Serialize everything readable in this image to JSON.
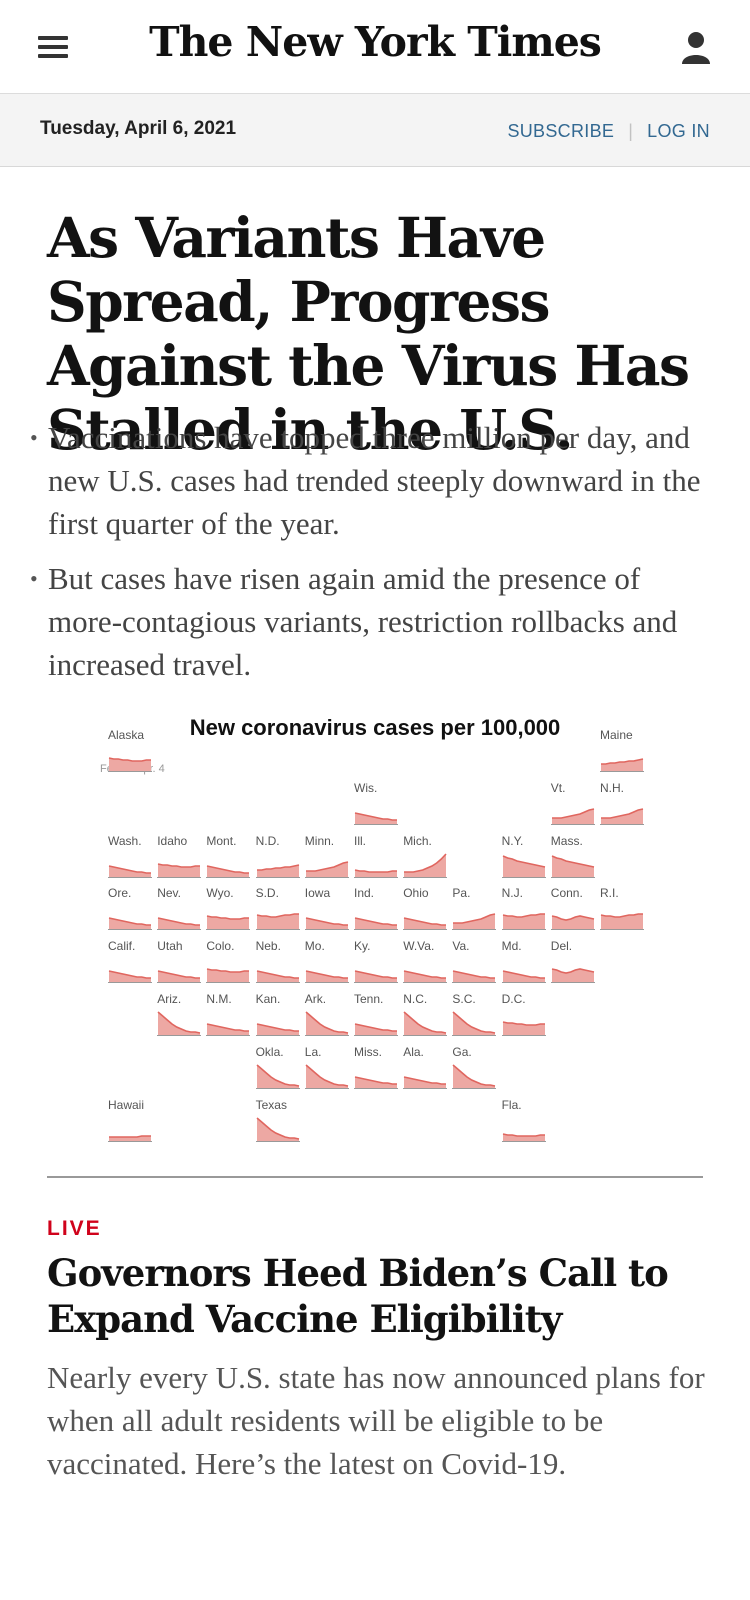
{
  "header": {
    "logo": "The New York Times",
    "date": "Tuesday, April 6, 2021",
    "subscribe": "SUBSCRIBE",
    "login": "LOG IN"
  },
  "story1": {
    "headline": "As Variants Have Spread, Progress Against the Virus Has Stalled in the U.S.",
    "bullets": [
      "Vaccinations have topped three million per day, and new U.S. cases had trended steeply downward in the first quarter of the year.",
      "But cases have risen again amid the presence of more-contagious variants, restriction rollbacks and increased travel."
    ]
  },
  "graphic": {
    "title": "New coronavirus cases per 100,000",
    "axis_start": "Feb. 1",
    "axis_end": "Apr. 4",
    "trend_color": "#e0665f",
    "fill_color": "#eda8a3",
    "states": [
      {
        "label": "Alaska",
        "trend": "flat-high"
      },
      {
        "label": "Maine",
        "trend": "rise-gentle"
      },
      {
        "label": "Wis.",
        "trend": "decline"
      },
      {
        "label": "Vt.",
        "trend": "rise"
      },
      {
        "label": "N.H.",
        "trend": "rise"
      },
      {
        "label": "Wash.",
        "trend": "decline"
      },
      {
        "label": "Idaho",
        "trend": "flat-high"
      },
      {
        "label": "Mont.",
        "trend": "decline"
      },
      {
        "label": "N.D.",
        "trend": "rise-gentle"
      },
      {
        "label": "Minn.",
        "trend": "rise"
      },
      {
        "label": "Ill.",
        "trend": "flat"
      },
      {
        "label": "Mich.",
        "trend": "spike"
      },
      {
        "label": "N.Y.",
        "trend": "high-decline"
      },
      {
        "label": "Mass.",
        "trend": "high-decline"
      },
      {
        "label": "Ore.",
        "trend": "decline"
      },
      {
        "label": "Nev.",
        "trend": "decline"
      },
      {
        "label": "Wyo.",
        "trend": "flat-high"
      },
      {
        "label": "S.D.",
        "trend": "high"
      },
      {
        "label": "Iowa",
        "trend": "decline"
      },
      {
        "label": "Ind.",
        "trend": "decline"
      },
      {
        "label": "Ohio",
        "trend": "decline"
      },
      {
        "label": "Pa.",
        "trend": "rise"
      },
      {
        "label": "N.J.",
        "trend": "high"
      },
      {
        "label": "Conn.",
        "trend": "wave"
      },
      {
        "label": "R.I.",
        "trend": "high"
      },
      {
        "label": "Calif.",
        "trend": "decline"
      },
      {
        "label": "Utah",
        "trend": "decline"
      },
      {
        "label": "Colo.",
        "trend": "flat-high"
      },
      {
        "label": "Neb.",
        "trend": "decline"
      },
      {
        "label": "Mo.",
        "trend": "decline"
      },
      {
        "label": "Ky.",
        "trend": "decline"
      },
      {
        "label": "W.Va.",
        "trend": "decline"
      },
      {
        "label": "Va.",
        "trend": "decline"
      },
      {
        "label": "Md.",
        "trend": "decline"
      },
      {
        "label": "Del.",
        "trend": "wave"
      },
      {
        "label": "Ariz.",
        "trend": "steep-decline"
      },
      {
        "label": "N.M.",
        "trend": "decline"
      },
      {
        "label": "Kan.",
        "trend": "decline"
      },
      {
        "label": "Ark.",
        "trend": "steep-decline"
      },
      {
        "label": "Tenn.",
        "trend": "decline"
      },
      {
        "label": "N.C.",
        "trend": "steep-decline"
      },
      {
        "label": "S.C.",
        "trend": "steep-decline"
      },
      {
        "label": "D.C.",
        "trend": "flat-high"
      },
      {
        "label": "Okla.",
        "trend": "steep-decline"
      },
      {
        "label": "La.",
        "trend": "steep-decline"
      },
      {
        "label": "Miss.",
        "trend": "decline"
      },
      {
        "label": "Ala.",
        "trend": "decline"
      },
      {
        "label": "Ga.",
        "trend": "steep-decline"
      },
      {
        "label": "Hawaii",
        "trend": "low-flat"
      },
      {
        "label": "Texas",
        "trend": "steep-decline"
      },
      {
        "label": "Fla.",
        "trend": "flat"
      }
    ]
  },
  "story2": {
    "tag": "LIVE",
    "headline": "Governors Heed Biden’s Call to Expand Vaccine Eligibility",
    "summary": "Nearly every U.S. state has now announced plans for when all adult residents will be eligible to be vaccinated. Here’s the latest on Covid-19."
  }
}
